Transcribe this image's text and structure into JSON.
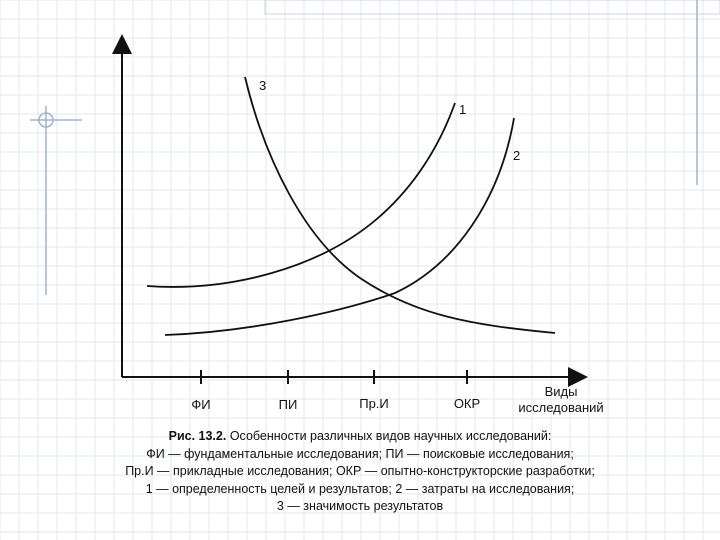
{
  "diagram": {
    "curves": [
      {
        "id": "1",
        "label": "1",
        "meaning": "определенность целей и результатов"
      },
      {
        "id": "2",
        "label": "2",
        "meaning": "затраты на исследования"
      },
      {
        "id": "3",
        "label": "3",
        "meaning": "значимость результатов"
      }
    ],
    "x_axis": {
      "label_line1": "Виды",
      "label_line2": "исследований",
      "ticks": [
        "ФИ",
        "ПИ",
        "Пр.И",
        "ОКР"
      ]
    }
  },
  "caption": {
    "title": "Рис. 13.2.",
    "title_rest": "Особенности различных видов научных исследований:",
    "line2": "ФИ — фундаментальные исследования; ПИ — поисковые исследования;",
    "line3": "Пр.И — прикладные исследования; ОКР — опытно-конструкторские разработки;",
    "line4": "1 — определенность целей и результатов; 2 — затраты на исследования;",
    "line5": "3 — значимость результатов"
  },
  "colors": {
    "ink": "#111111",
    "grid_line": "#dfe6ee",
    "grid_accent": "#9fb4cc"
  }
}
